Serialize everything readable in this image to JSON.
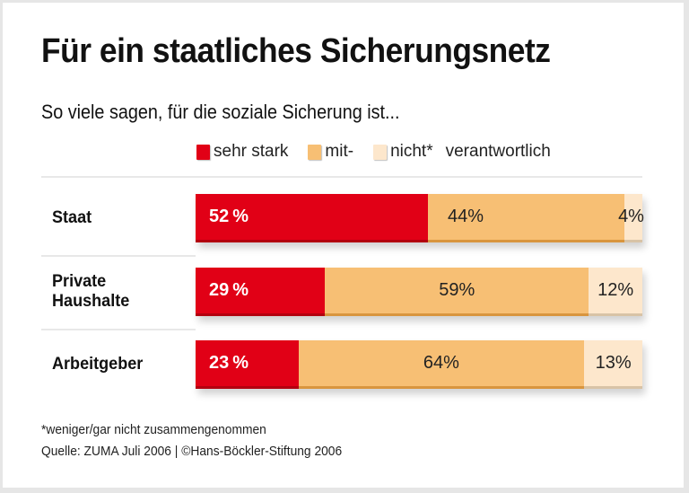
{
  "chart_data": {
    "type": "bar",
    "orientation": "horizontal",
    "stacked": true,
    "title": "Für ein staatliches Sicherungsnetz",
    "subtitle": "So viele sagen, für die soziale Sicherung ist...",
    "categories": [
      "Staat",
      "Private Haushalte",
      "Arbeitgeber"
    ],
    "category_lines": [
      [
        "Staat"
      ],
      [
        "Private",
        "Haushalte"
      ],
      [
        "Arbeitgeber"
      ]
    ],
    "series": [
      {
        "name": "sehr stark",
        "color": "#e10016",
        "text_color": "#ffffff",
        "values": [
          52,
          29,
          23
        ]
      },
      {
        "name": "mit-",
        "color": "#f7bf74",
        "text_color": "#222222",
        "values": [
          44,
          59,
          64
        ]
      },
      {
        "name": "nicht*",
        "color": "#fde7cc",
        "text_color": "#222222",
        "values": [
          4,
          12,
          13
        ]
      }
    ],
    "legend_suffix": "verantwortlich",
    "legend_position": "top",
    "value_suffix": "%",
    "xlim": [
      0,
      100
    ],
    "footnote": "*weniger/gar nicht zusammengenommen",
    "source": "Quelle: ZUMA Juli 2006 | ©Hans-Böckler-Stiftung 2006"
  }
}
